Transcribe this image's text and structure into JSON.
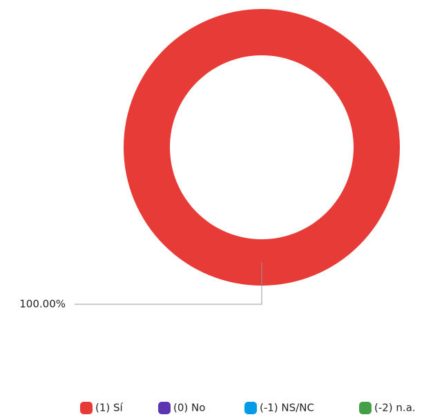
{
  "chart_data": {
    "type": "donut",
    "categories": [
      "(1) Sí",
      "(0) No",
      "(-1) NS/NC",
      "(-2) n.a."
    ],
    "values": [
      100,
      0,
      0,
      0
    ],
    "value_labels": [
      "100.00%",
      null,
      null,
      null
    ],
    "colors": [
      "#e63b36",
      "#5e35b1",
      "#039be5",
      "#43a047"
    ],
    "legend": "bottom"
  }
}
